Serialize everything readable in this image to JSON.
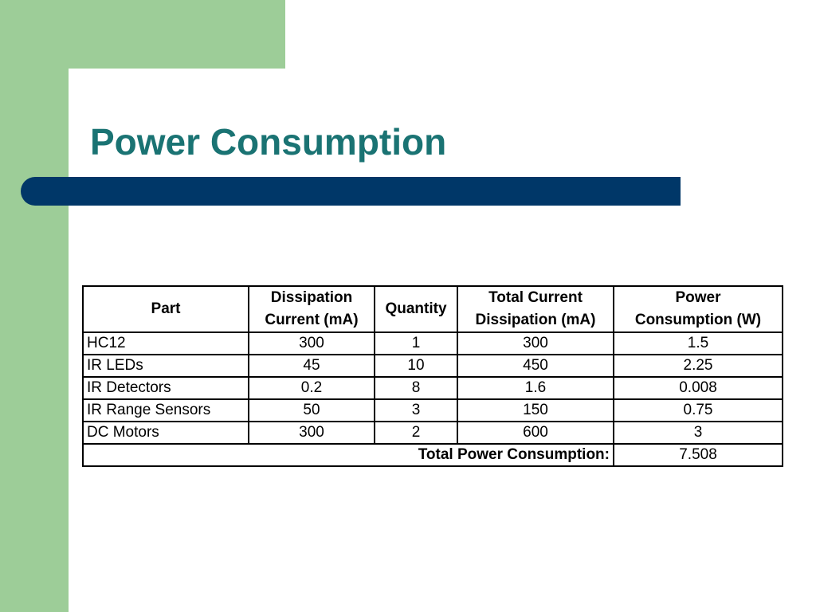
{
  "slide": {
    "title": "Power Consumption"
  },
  "table": {
    "headers": [
      {
        "line1": "Part",
        "line2": ""
      },
      {
        "line1": "Dissipation",
        "line2": "Current (mA)"
      },
      {
        "line1": "Quantity",
        "line2": ""
      },
      {
        "line1": "Total Current",
        "line2": "Dissipation (mA)"
      },
      {
        "line1": "Power",
        "line2": "Consumption (W)"
      }
    ],
    "rows": [
      {
        "part": "HC12",
        "current": "300",
        "quantity": "1",
        "total_current": "300",
        "power": "1.5"
      },
      {
        "part": "IR LEDs",
        "current": "45",
        "quantity": "10",
        "total_current": "450",
        "power": "2.25"
      },
      {
        "part": "IR Detectors",
        "current": "0.2",
        "quantity": "8",
        "total_current": "1.6",
        "power": "0.008"
      },
      {
        "part": "IR Range Sensors",
        "current": "50",
        "quantity": "3",
        "total_current": "150",
        "power": "0.75"
      },
      {
        "part": "DC Motors",
        "current": "300",
        "quantity": "2",
        "total_current": "600",
        "power": "3"
      }
    ],
    "total": {
      "label": "Total Power Consumption:",
      "value": "7.508"
    }
  },
  "colors": {
    "sidebar_green": "#9dcd98",
    "title_teal": "#1a7373",
    "bar_navy": "#003768"
  }
}
